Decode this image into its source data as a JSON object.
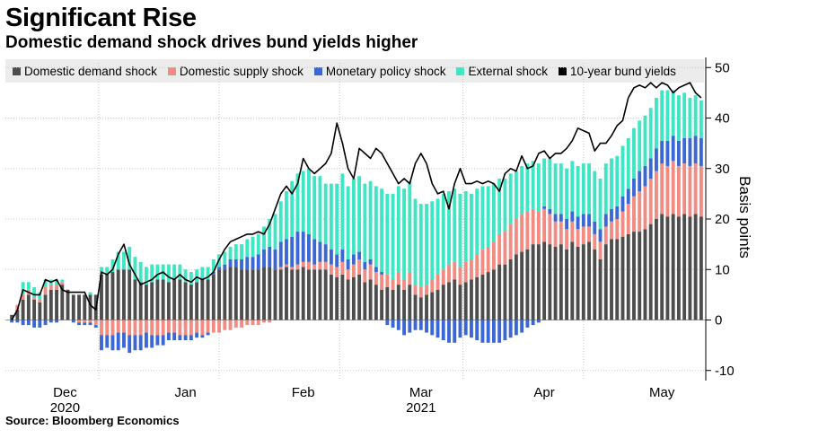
{
  "header": {
    "title": "Significant Rise",
    "subtitle": "Domestic demand shock drives bund yields higher"
  },
  "legend": [
    {
      "label": "Domestic demand shock",
      "color": "#4d4d4d"
    },
    {
      "label": "Domestic supply shock",
      "color": "#f28b82"
    },
    {
      "label": "Monetary policy shock",
      "color": "#3a66d6"
    },
    {
      "label": "External shock",
      "color": "#3ee6c4"
    },
    {
      "label": "10-year bund yields",
      "color": "#000000"
    }
  ],
  "footer": {
    "source": "Source: Bloomberg Economics"
  },
  "chart_data": {
    "type": "bar",
    "stacked": true,
    "title": "Significant Rise",
    "subtitle": "Domestic demand shock drives bund yields higher",
    "xlabel": "",
    "ylabel": "Basis points",
    "ylim": [
      -12,
      52
    ],
    "yticks": [
      -10,
      0,
      10,
      20,
      30,
      40,
      50
    ],
    "grid": true,
    "legend_position": "top",
    "x_tick_labels": [
      {
        "label": "Dec",
        "sublabel": "2020",
        "x": 9.5
      },
      {
        "label": "Jan",
        "sublabel": "",
        "x": 31
      },
      {
        "label": "Feb",
        "sublabel": "",
        "x": 52
      },
      {
        "label": "Mar",
        "sublabel": "2021",
        "x": 73
      },
      {
        "label": "Apr",
        "sublabel": "",
        "x": 95
      },
      {
        "label": "May",
        "sublabel": "",
        "x": 116
      }
    ],
    "month_boundaries": [
      15.5,
      37,
      58.5,
      80.5,
      102
    ],
    "x": [
      0,
      1,
      2,
      3,
      4,
      5,
      6,
      7,
      8,
      9,
      10,
      11,
      12,
      13,
      14,
      15,
      16,
      17,
      18,
      19,
      20,
      21,
      22,
      23,
      24,
      25,
      26,
      27,
      28,
      29,
      30,
      31,
      32,
      33,
      34,
      35,
      36,
      37,
      38,
      39,
      40,
      41,
      42,
      43,
      44,
      45,
      46,
      47,
      48,
      49,
      50,
      51,
      52,
      53,
      54,
      55,
      56,
      57,
      58,
      59,
      60,
      61,
      62,
      63,
      64,
      65,
      66,
      67,
      68,
      69,
      70,
      71,
      72,
      73,
      74,
      75,
      76,
      77,
      78,
      79,
      80,
      81,
      82,
      83,
      84,
      85,
      86,
      87,
      88,
      89,
      90,
      91,
      92,
      93,
      94,
      95,
      96,
      97,
      98,
      99,
      100,
      101,
      102,
      103,
      104,
      105,
      106,
      107,
      108,
      109,
      110,
      111,
      112,
      113,
      114,
      115,
      116,
      117,
      118,
      119,
      120,
      121,
      122,
      123
    ],
    "series": [
      {
        "name": "Domestic demand shock",
        "values": [
          1.0,
          2.0,
          4.0,
          5.0,
          4.0,
          3.5,
          5.0,
          6.0,
          6.0,
          7.0,
          6.0,
          5.0,
          5.0,
          5.0,
          5.0,
          5.0,
          9.0,
          9.0,
          9.5,
          10.0,
          10.0,
          10.0,
          8.0,
          7.5,
          7.0,
          7.5,
          8.0,
          8.0,
          7.5,
          8.0,
          8.0,
          7.5,
          7.0,
          7.5,
          8.0,
          8.0,
          9.0,
          10.0,
          10.0,
          10.5,
          10.5,
          10.0,
          10.0,
          10.0,
          10.0,
          10.5,
          10.5,
          10.0,
          10.0,
          10.5,
          10.0,
          10.0,
          10.5,
          10.0,
          10.0,
          10.0,
          10.0,
          9.0,
          8.5,
          9.0,
          8.0,
          8.5,
          9.0,
          7.5,
          8.0,
          7.0,
          6.0,
          6.5,
          6.0,
          7.0,
          6.0,
          7.0,
          5.0,
          4.5,
          5.0,
          5.5,
          6.0,
          7.0,
          7.5,
          8.0,
          7.0,
          7.5,
          8.0,
          8.5,
          9.0,
          9.5,
          10.0,
          11.0,
          11.0,
          12.0,
          13.0,
          13.5,
          14.0,
          15.0,
          15.0,
          15.5,
          15.0,
          14.5,
          15.0,
          14.0,
          15.5,
          14.5,
          15.0,
          15.5,
          14.0,
          12.0,
          15.0,
          16.0,
          16.0,
          16.5,
          17.0,
          17.5,
          17.5,
          18.0,
          19.0,
          20.0,
          21.0,
          20.5,
          21.0,
          20.5,
          21.0,
          20.5,
          21.0,
          20.5
        ]
      },
      {
        "name": "Domestic supply shock",
        "values": [
          0.0,
          1.0,
          1.0,
          1.0,
          0.5,
          0.5,
          1.5,
          1.0,
          1.0,
          0.5,
          0.0,
          0.0,
          -0.5,
          -0.5,
          -0.5,
          -1.0,
          -3.0,
          -3.0,
          -3.0,
          -2.5,
          -2.5,
          -3.0,
          -3.0,
          -3.0,
          -2.5,
          -3.0,
          -3.0,
          -3.0,
          -2.5,
          -2.5,
          -3.0,
          -3.0,
          -3.0,
          -2.5,
          -3.0,
          -2.5,
          -2.5,
          -2.5,
          -2.0,
          -2.0,
          -1.5,
          -1.5,
          -1.0,
          -1.0,
          -1.0,
          -0.5,
          -0.5,
          0.0,
          0.5,
          0.5,
          0.5,
          1.0,
          1.0,
          1.5,
          1.0,
          1.5,
          1.5,
          2.0,
          2.0,
          2.5,
          2.0,
          2.5,
          3.0,
          2.5,
          3.0,
          2.5,
          3.0,
          2.5,
          2.0,
          2.5,
          2.0,
          2.5,
          2.0,
          2.0,
          2.0,
          2.5,
          3.0,
          3.0,
          3.5,
          3.5,
          3.5,
          4.0,
          4.0,
          4.5,
          5.0,
          5.0,
          5.5,
          6.0,
          6.5,
          7.0,
          7.0,
          7.5,
          7.5,
          7.0,
          6.5,
          6.5,
          6.0,
          5.0,
          4.5,
          4.0,
          4.0,
          3.5,
          3.5,
          3.0,
          3.0,
          3.5,
          3.5,
          3.5,
          4.0,
          5.0,
          6.0,
          7.0,
          8.0,
          8.5,
          9.0,
          9.5,
          10.0,
          10.0,
          10.5,
          10.0,
          10.0,
          10.0,
          10.0,
          10.0
        ]
      },
      {
        "name": "Monetary policy shock",
        "values": [
          -0.5,
          -0.5,
          -1.0,
          -1.0,
          -1.5,
          -1.5,
          -1.0,
          -0.5,
          -0.5,
          0.0,
          0.0,
          -0.5,
          -0.5,
          -0.5,
          -0.5,
          -0.5,
          -3.0,
          -2.5,
          -3.0,
          -3.5,
          -3.0,
          -3.5,
          -3.0,
          -3.0,
          -3.0,
          -2.5,
          -2.0,
          -2.0,
          -1.5,
          -1.5,
          -1.0,
          -1.0,
          -1.0,
          -1.0,
          -0.5,
          -0.5,
          0.5,
          0.5,
          1.0,
          1.5,
          1.5,
          2.0,
          2.5,
          2.5,
          3.0,
          3.5,
          4.0,
          4.0,
          5.0,
          5.0,
          6.0,
          6.5,
          6.0,
          5.5,
          5.0,
          4.0,
          3.5,
          3.0,
          2.5,
          2.5,
          2.0,
          2.0,
          1.5,
          1.5,
          1.0,
          1.0,
          0.5,
          -1.0,
          -1.5,
          -2.0,
          -3.0,
          -2.5,
          -2.0,
          -2.0,
          -2.5,
          -3.0,
          -3.5,
          -4.0,
          -4.5,
          -4.5,
          -3.5,
          -3.0,
          -3.5,
          -4.0,
          -4.5,
          -4.5,
          -4.5,
          -4.5,
          -4.0,
          -3.5,
          -3.0,
          -2.5,
          -1.5,
          -1.0,
          -0.5,
          0.5,
          1.0,
          1.5,
          1.5,
          2.0,
          2.0,
          2.5,
          2.5,
          2.5,
          2.5,
          2.5,
          2.5,
          2.5,
          2.5,
          3.0,
          3.0,
          3.5,
          4.0,
          4.0,
          4.0,
          4.5,
          4.5,
          5.0,
          5.0,
          5.0,
          5.0,
          5.5,
          5.5,
          5.5
        ]
      },
      {
        "name": "External shock",
        "values": [
          0.0,
          0.0,
          2.5,
          1.5,
          2.0,
          1.5,
          1.5,
          1.0,
          1.0,
          0.5,
          0.0,
          0.0,
          0.0,
          0.0,
          0.5,
          0.0,
          1.5,
          1.5,
          2.5,
          3.5,
          3.5,
          4.5,
          4.5,
          4.0,
          3.5,
          3.5,
          3.0,
          3.0,
          3.5,
          3.0,
          3.0,
          2.5,
          2.5,
          2.5,
          2.5,
          2.5,
          2.5,
          2.5,
          2.5,
          2.5,
          3.0,
          3.0,
          3.5,
          4.0,
          4.0,
          4.5,
          5.5,
          7.0,
          8.0,
          9.5,
          11.0,
          11.5,
          12.0,
          13.0,
          12.5,
          13.0,
          12.0,
          13.0,
          14.0,
          15.0,
          14.5,
          15.0,
          15.0,
          15.5,
          15.5,
          16.0,
          16.5,
          16.0,
          17.0,
          17.0,
          18.0,
          18.0,
          17.0,
          16.5,
          16.0,
          15.5,
          15.0,
          15.0,
          14.5,
          14.5,
          14.5,
          14.0,
          13.0,
          13.0,
          12.5,
          12.0,
          11.5,
          11.0,
          10.5,
          10.0,
          9.5,
          9.5,
          9.5,
          9.5,
          9.5,
          9.5,
          10.0,
          10.0,
          10.0,
          10.0,
          10.0,
          10.0,
          10.0,
          10.0,
          10.0,
          10.0,
          10.0,
          10.0,
          10.0,
          10.0,
          10.0,
          10.0,
          10.0,
          10.0,
          10.0,
          10.0,
          10.0,
          10.0,
          9.0,
          9.0,
          9.0,
          8.0,
          8.0,
          7.5
        ]
      }
    ],
    "yield_series": {
      "name": "10-year bund yields",
      "values": [
        0.0,
        2.0,
        6.0,
        5.5,
        5.0,
        5.0,
        8.0,
        7.5,
        8.0,
        6.0,
        5.5,
        5.5,
        5.5,
        5.5,
        3.0,
        2.0,
        9.5,
        9.0,
        10.0,
        13.0,
        15.0,
        11.0,
        9.0,
        7.0,
        7.5,
        8.0,
        9.0,
        9.5,
        8.5,
        8.0,
        9.0,
        8.0,
        7.5,
        8.5,
        8.0,
        8.5,
        9.5,
        12.0,
        14.0,
        15.5,
        16.0,
        16.5,
        17.0,
        17.0,
        17.5,
        17.0,
        19.0,
        22.0,
        25.0,
        26.5,
        25.0,
        27.0,
        32.0,
        30.0,
        29.0,
        30.0,
        31.0,
        33.0,
        39.0,
        35.0,
        30.0,
        28.0,
        34.0,
        33.0,
        32.0,
        34.0,
        33.0,
        31.0,
        29.0,
        27.0,
        28.0,
        27.0,
        31.0,
        33.0,
        31.0,
        27.0,
        25.0,
        25.5,
        22.0,
        27.0,
        30.0,
        27.0,
        27.0,
        27.5,
        27.0,
        27.5,
        27.0,
        25.5,
        29.0,
        30.0,
        29.5,
        32.5,
        30.0,
        30.5,
        33.0,
        33.5,
        32.0,
        33.0,
        33.0,
        34.0,
        35.5,
        38.0,
        37.5,
        37.0,
        33.5,
        35.0,
        35.0,
        36.5,
        38.5,
        39.5,
        44.0,
        46.0,
        46.5,
        46.0,
        47.0,
        46.0,
        47.0,
        46.5,
        45.0,
        46.0,
        46.5,
        47.0,
        45.0,
        44.0
      ]
    }
  }
}
